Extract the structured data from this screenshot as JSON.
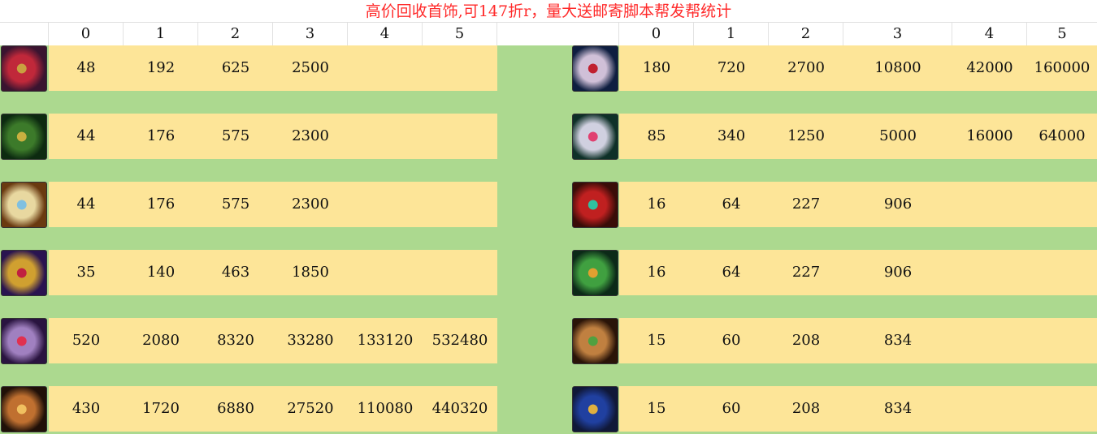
{
  "title": "高价回收首饰,可147折r，量大送邮寄脚本帮发帮统计",
  "headers": [
    "0",
    "1",
    "2",
    "3",
    "4",
    "5"
  ],
  "left": [
    {
      "icon": "necklace-skull-icon",
      "colors": [
        "#3a1430",
        "#c0283a",
        "#c9a040"
      ],
      "values": [
        "48",
        "192",
        "625",
        "2500",
        "",
        ""
      ]
    },
    {
      "icon": "necklace-green-icon",
      "colors": [
        "#0c2a10",
        "#3c7a2a",
        "#c9b040"
      ],
      "values": [
        "44",
        "176",
        "575",
        "2300",
        "",
        ""
      ]
    },
    {
      "icon": "pendant-winged-icon",
      "colors": [
        "#6a3a10",
        "#e8d8a0",
        "#80c0e0"
      ],
      "values": [
        "44",
        "176",
        "575",
        "2300",
        "",
        ""
      ]
    },
    {
      "icon": "bracelet-gold-icon",
      "colors": [
        "#2a1450",
        "#d0a030",
        "#c02040"
      ],
      "values": [
        "35",
        "140",
        "463",
        "1850",
        "",
        ""
      ]
    },
    {
      "icon": "necklace-chain-icon",
      "colors": [
        "#2a1440",
        "#a080c0",
        "#e03050"
      ],
      "values": [
        "520",
        "2080",
        "8320",
        "33280",
        "133120",
        "532480"
      ]
    },
    {
      "icon": "pendant-amulet-icon",
      "colors": [
        "#201008",
        "#c07030",
        "#f0c060"
      ],
      "values": [
        "430",
        "1720",
        "6880",
        "27520",
        "110080",
        "440320"
      ]
    }
  ],
  "right": [
    {
      "icon": "ring-ruby-icon",
      "colors": [
        "#0e1e40",
        "#d0c0d8",
        "#c02030"
      ],
      "values": [
        "180",
        "720",
        "2700",
        "10800",
        "42000",
        "160000"
      ]
    },
    {
      "icon": "ring-silver-icon",
      "colors": [
        "#0e3028",
        "#d0d0e0",
        "#e04070"
      ],
      "values": [
        "85",
        "340",
        "1250",
        "5000",
        "16000",
        "64000"
      ]
    },
    {
      "icon": "ring-red-gold-icon",
      "colors": [
        "#3a0c08",
        "#c02020",
        "#30c0a0"
      ],
      "values": [
        "16",
        "64",
        "227",
        "906",
        "",
        ""
      ]
    },
    {
      "icon": "ring-jade-icon",
      "colors": [
        "#0c2a18",
        "#40a040",
        "#e0a030"
      ],
      "values": [
        "16",
        "64",
        "227",
        "906",
        "",
        ""
      ]
    },
    {
      "icon": "ring-rose-icon",
      "colors": [
        "#2a1408",
        "#c08040",
        "#50a040"
      ],
      "values": [
        "15",
        "60",
        "208",
        "834",
        "",
        ""
      ]
    },
    {
      "icon": "ring-sapphire-icon",
      "colors": [
        "#101838",
        "#2040a0",
        "#e0b040"
      ],
      "values": [
        "15",
        "60",
        "208",
        "834",
        "",
        ""
      ]
    }
  ]
}
